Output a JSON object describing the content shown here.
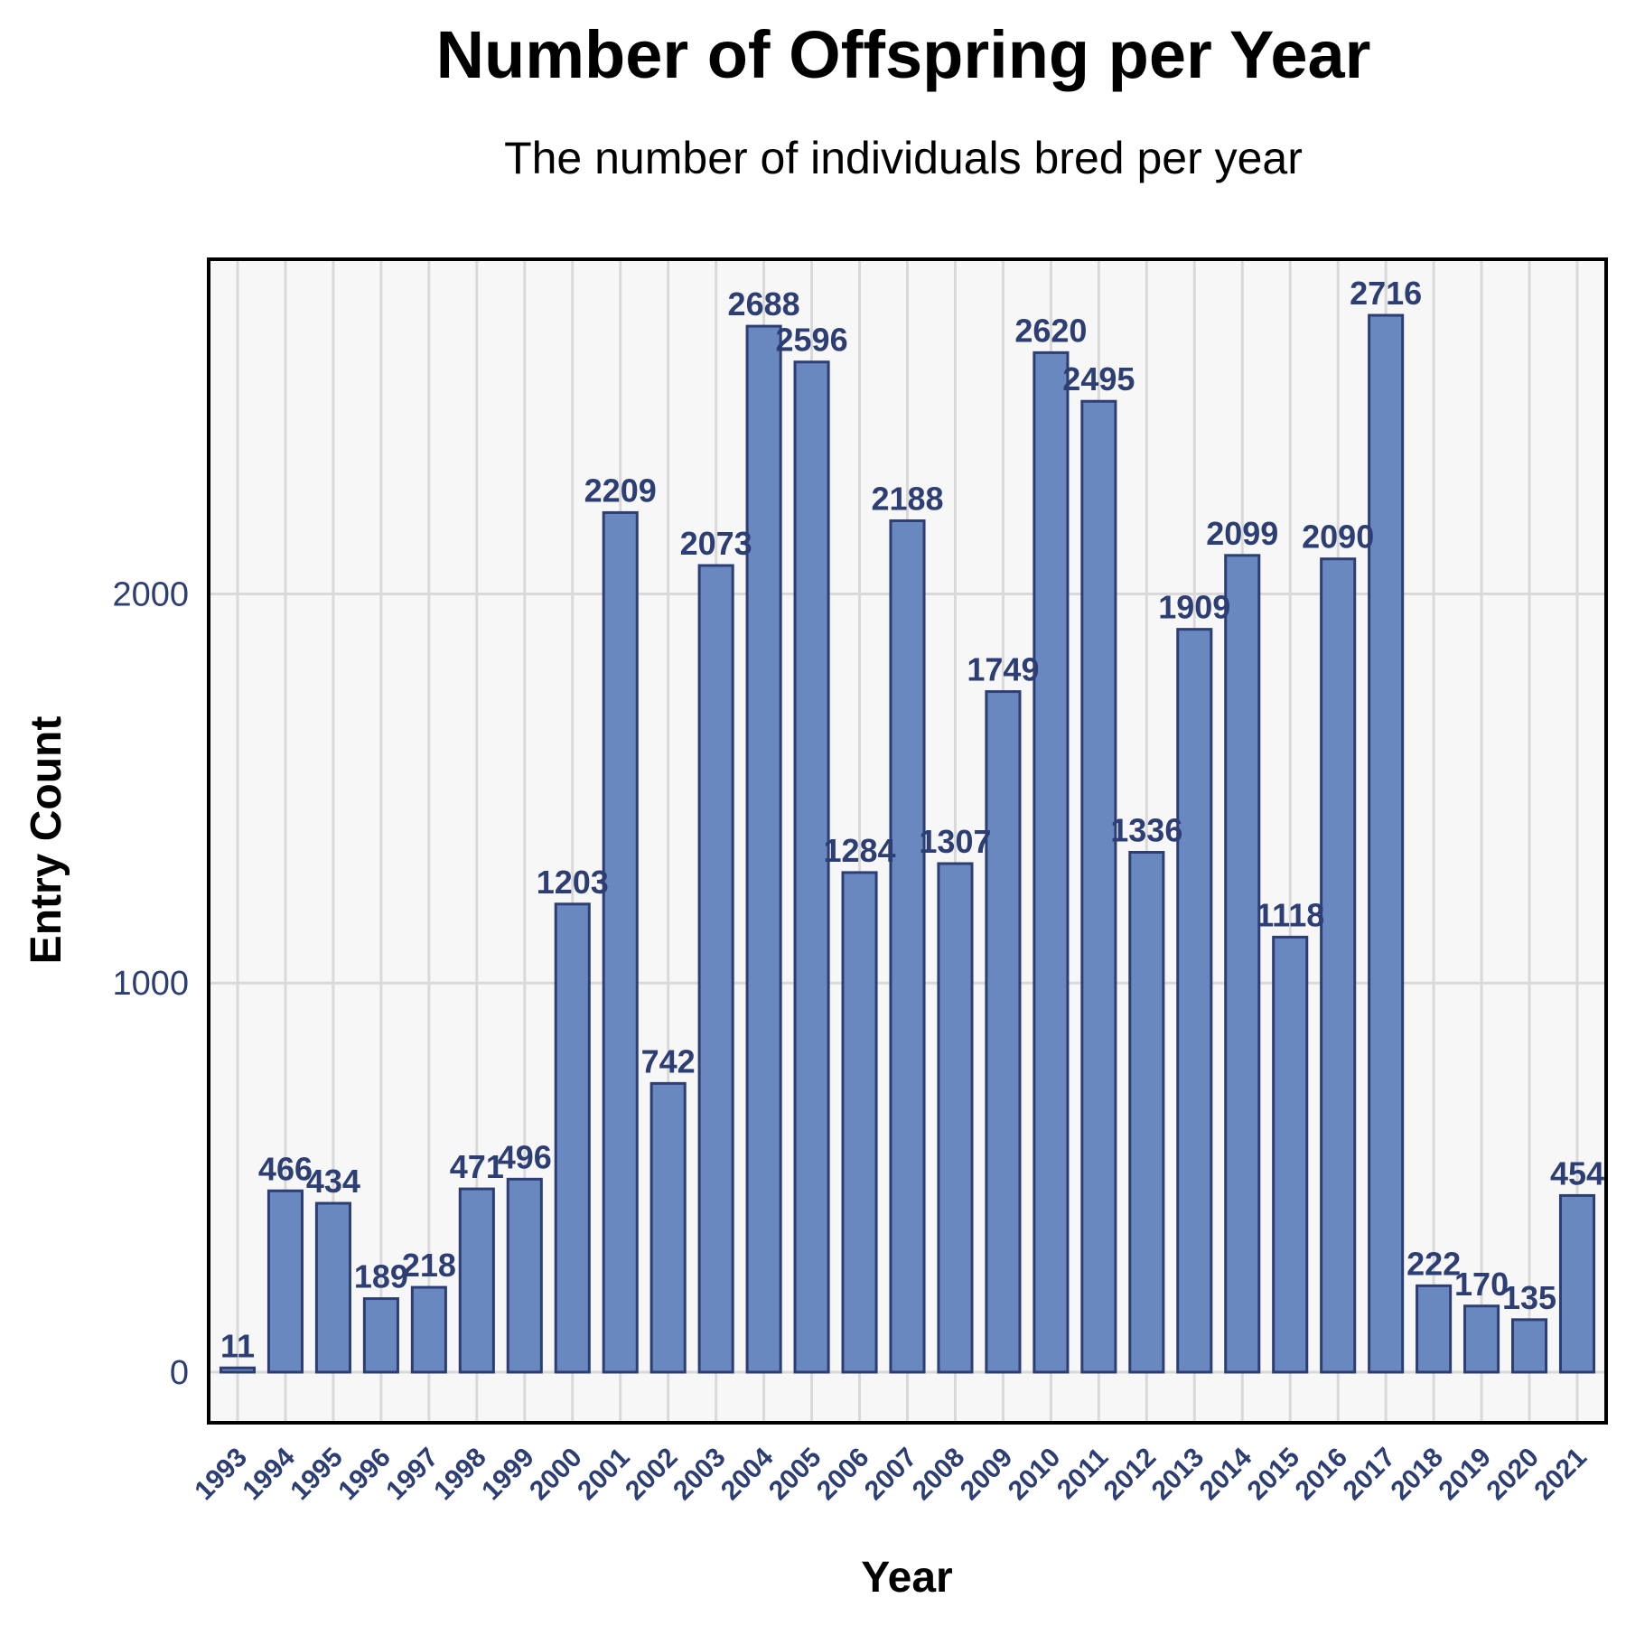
{
  "chart_data": {
    "type": "bar",
    "title": "Number of Offspring per Year",
    "subtitle": "The number of individuals bred per year",
    "xlabel": "Year",
    "ylabel": "Entry Count",
    "categories": [
      "1993",
      "1994",
      "1995",
      "1996",
      "1997",
      "1998",
      "1999",
      "2000",
      "2001",
      "2002",
      "2003",
      "2004",
      "2005",
      "2006",
      "2007",
      "2008",
      "2009",
      "2010",
      "2011",
      "2012",
      "2013",
      "2014",
      "2015",
      "2016",
      "2017",
      "2018",
      "2019",
      "2020",
      "2021"
    ],
    "values": [
      11,
      466,
      434,
      189,
      218,
      471,
      496,
      1203,
      2209,
      742,
      2073,
      2688,
      2596,
      1284,
      2188,
      1307,
      1749,
      2620,
      2495,
      1336,
      1909,
      2099,
      1118,
      2090,
      2716,
      222,
      170,
      135,
      454
    ],
    "yticks": [
      0,
      1000,
      2000
    ],
    "ylim": [
      -130,
      2860
    ],
    "grid": true,
    "data_labels": true,
    "colors": {
      "bar_fill": "#6a88c0",
      "bar_stroke": "#2c3e73",
      "label_text": "#2c3e73",
      "panel_bg": "#f7f7f7",
      "grid": "#d9d9d9",
      "border": "#000000"
    }
  }
}
